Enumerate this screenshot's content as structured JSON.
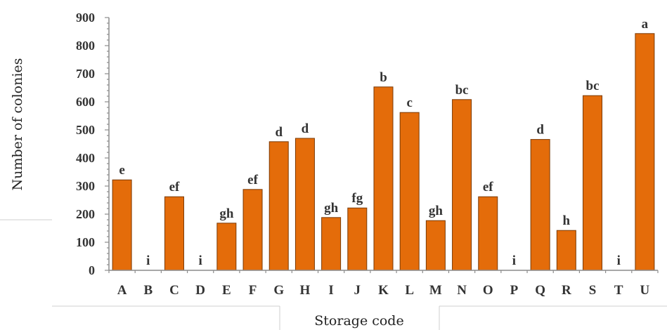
{
  "chart_data": {
    "type": "bar",
    "title": "",
    "xlabel": "Storage code",
    "ylabel": "Number of colonies",
    "ylim": [
      0,
      900
    ],
    "yticks": [
      0,
      100,
      200,
      300,
      400,
      500,
      600,
      700,
      800,
      900
    ],
    "categories": [
      "A",
      "B",
      "C",
      "D",
      "E",
      "F",
      "G",
      "H",
      "I",
      "J",
      "K",
      "L",
      "M",
      "N",
      "O",
      "P",
      "Q",
      "R",
      "S",
      "T",
      "U"
    ],
    "values": [
      322,
      0,
      262,
      0,
      168,
      288,
      458,
      470,
      188,
      222,
      653,
      562,
      177,
      608,
      262,
      0,
      466,
      142,
      622,
      0,
      843
    ],
    "significance_letters": [
      "e",
      "i",
      "ef",
      "i",
      "gh",
      "ef",
      "d",
      "d",
      "gh",
      "fg",
      "b",
      "c",
      "gh",
      "bc",
      "ef",
      "i",
      "d",
      "h",
      "bc",
      "i",
      "a"
    ],
    "bar_color": "#E46C0A",
    "grid": false,
    "legend": "none"
  }
}
